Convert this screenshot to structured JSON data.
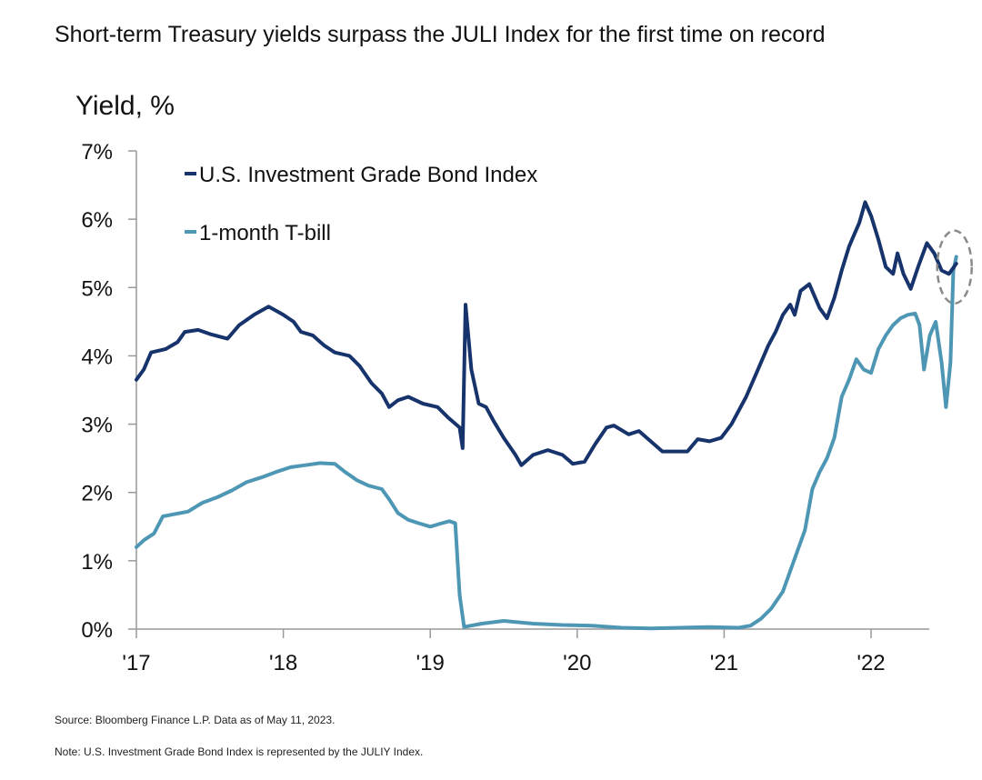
{
  "chart_data": {
    "type": "line",
    "title": "Short-term Treasury yields surpass the JULI Index for the first time on record",
    "ylabel": "Yield, %",
    "xlabel": "",
    "ylim": [
      0,
      7
    ],
    "xlim": [
      2017,
      2022.42
    ],
    "y_ticks": [
      0,
      1,
      2,
      3,
      4,
      5,
      6,
      7
    ],
    "y_tick_labels": [
      "0%",
      "1%",
      "2%",
      "3%",
      "4%",
      "5%",
      "6%",
      "7%"
    ],
    "x_ticks": [
      2017,
      2018,
      2019,
      2020,
      2021,
      2022
    ],
    "x_tick_labels": [
      "'17",
      "'18",
      "'19",
      "'20",
      "'21",
      "'22"
    ],
    "legend": {
      "placement": "top-left",
      "entries": [
        "U.S. Investment Grade Bond Index",
        "1-month T-bill"
      ]
    },
    "series": [
      {
        "name": "U.S. Investment Grade Bond Index",
        "color": "#17336b",
        "points": [
          [
            2017.0,
            3.65
          ],
          [
            2017.05,
            3.8
          ],
          [
            2017.1,
            4.05
          ],
          [
            2017.2,
            4.1
          ],
          [
            2017.28,
            4.2
          ],
          [
            2017.33,
            4.35
          ],
          [
            2017.42,
            4.38
          ],
          [
            2017.5,
            4.32
          ],
          [
            2017.62,
            4.25
          ],
          [
            2017.7,
            4.45
          ],
          [
            2017.8,
            4.6
          ],
          [
            2017.9,
            4.72
          ],
          [
            2018.0,
            4.6
          ],
          [
            2018.07,
            4.5
          ],
          [
            2018.12,
            4.35
          ],
          [
            2018.2,
            4.3
          ],
          [
            2018.28,
            4.15
          ],
          [
            2018.35,
            4.05
          ],
          [
            2018.45,
            4.0
          ],
          [
            2018.52,
            3.85
          ],
          [
            2018.6,
            3.6
          ],
          [
            2018.67,
            3.45
          ],
          [
            2018.72,
            3.25
          ],
          [
            2018.78,
            3.35
          ],
          [
            2018.85,
            3.4
          ],
          [
            2018.95,
            3.3
          ],
          [
            2019.05,
            3.25
          ],
          [
            2019.12,
            3.1
          ],
          [
            2019.2,
            2.95
          ],
          [
            2019.22,
            2.65
          ],
          [
            2019.24,
            4.75
          ],
          [
            2019.28,
            3.8
          ],
          [
            2019.33,
            3.3
          ],
          [
            2019.38,
            3.25
          ],
          [
            2019.43,
            3.05
          ],
          [
            2019.5,
            2.8
          ],
          [
            2019.58,
            2.55
          ],
          [
            2019.62,
            2.4
          ],
          [
            2019.7,
            2.55
          ],
          [
            2019.8,
            2.62
          ],
          [
            2019.9,
            2.55
          ],
          [
            2019.97,
            2.42
          ],
          [
            2020.05,
            2.45
          ],
          [
            2020.12,
            2.7
          ],
          [
            2020.2,
            2.95
          ],
          [
            2020.25,
            2.98
          ],
          [
            2020.35,
            2.85
          ],
          [
            2020.42,
            2.9
          ],
          [
            2020.5,
            2.75
          ],
          [
            2020.58,
            2.6
          ],
          [
            2020.67,
            2.6
          ],
          [
            2020.75,
            2.6
          ],
          [
            2020.82,
            2.78
          ],
          [
            2020.9,
            2.75
          ],
          [
            2020.98,
            2.8
          ],
          [
            2021.05,
            3.0
          ],
          [
            2021.15,
            3.4
          ],
          [
            2021.22,
            3.75
          ],
          [
            2021.3,
            4.15
          ],
          [
            2021.35,
            4.35
          ],
          [
            2021.4,
            4.6
          ],
          [
            2021.45,
            4.75
          ],
          [
            2021.48,
            4.6
          ],
          [
            2021.52,
            4.95
          ],
          [
            2021.58,
            5.05
          ],
          [
            2021.65,
            4.7
          ],
          [
            2021.7,
            4.55
          ],
          [
            2021.75,
            4.85
          ],
          [
            2021.8,
            5.25
          ],
          [
            2021.85,
            5.6
          ],
          [
            2021.92,
            5.95
          ],
          [
            2021.96,
            6.25
          ],
          [
            2022.0,
            6.05
          ],
          [
            2022.05,
            5.7
          ],
          [
            2022.1,
            5.3
          ],
          [
            2022.15,
            5.2
          ],
          [
            2022.18,
            5.5
          ],
          [
            2022.22,
            5.2
          ],
          [
            2022.27,
            4.98
          ],
          [
            2022.32,
            5.3
          ],
          [
            2022.38,
            5.65
          ],
          [
            2022.43,
            5.5
          ],
          [
            2022.48,
            5.25
          ],
          [
            2022.53,
            5.2
          ],
          [
            2022.58,
            5.35
          ]
        ]
      },
      {
        "name": "1-month T-bill",
        "color": "#4e97b4",
        "points": [
          [
            2017.0,
            1.2
          ],
          [
            2017.05,
            1.3
          ],
          [
            2017.12,
            1.4
          ],
          [
            2017.18,
            1.65
          ],
          [
            2017.25,
            1.68
          ],
          [
            2017.35,
            1.72
          ],
          [
            2017.45,
            1.85
          ],
          [
            2017.55,
            1.93
          ],
          [
            2017.65,
            2.03
          ],
          [
            2017.75,
            2.15
          ],
          [
            2017.85,
            2.22
          ],
          [
            2017.95,
            2.3
          ],
          [
            2018.05,
            2.37
          ],
          [
            2018.15,
            2.4
          ],
          [
            2018.25,
            2.43
          ],
          [
            2018.35,
            2.42
          ],
          [
            2018.42,
            2.3
          ],
          [
            2018.5,
            2.18
          ],
          [
            2018.58,
            2.1
          ],
          [
            2018.67,
            2.05
          ],
          [
            2018.72,
            1.9
          ],
          [
            2018.78,
            1.7
          ],
          [
            2018.85,
            1.6
          ],
          [
            2018.92,
            1.55
          ],
          [
            2019.0,
            1.5
          ],
          [
            2019.08,
            1.55
          ],
          [
            2019.13,
            1.58
          ],
          [
            2019.17,
            1.55
          ],
          [
            2019.2,
            0.5
          ],
          [
            2019.23,
            0.03
          ],
          [
            2019.35,
            0.08
          ],
          [
            2019.5,
            0.12
          ],
          [
            2019.7,
            0.08
          ],
          [
            2019.9,
            0.06
          ],
          [
            2020.1,
            0.05
          ],
          [
            2020.3,
            0.02
          ],
          [
            2020.5,
            0.01
          ],
          [
            2020.7,
            0.02
          ],
          [
            2020.9,
            0.03
          ],
          [
            2021.1,
            0.02
          ],
          [
            2021.18,
            0.05
          ],
          [
            2021.25,
            0.15
          ],
          [
            2021.32,
            0.3
          ],
          [
            2021.4,
            0.55
          ],
          [
            2021.45,
            0.85
          ],
          [
            2021.5,
            1.15
          ],
          [
            2021.55,
            1.45
          ],
          [
            2021.6,
            2.05
          ],
          [
            2021.65,
            2.3
          ],
          [
            2021.7,
            2.5
          ],
          [
            2021.75,
            2.8
          ],
          [
            2021.8,
            3.4
          ],
          [
            2021.85,
            3.65
          ],
          [
            2021.9,
            3.95
          ],
          [
            2021.95,
            3.8
          ],
          [
            2022.0,
            3.75
          ],
          [
            2022.05,
            4.1
          ],
          [
            2022.1,
            4.3
          ],
          [
            2022.15,
            4.45
          ],
          [
            2022.2,
            4.55
          ],
          [
            2022.25,
            4.6
          ],
          [
            2022.3,
            4.62
          ],
          [
            2022.33,
            4.45
          ],
          [
            2022.36,
            3.8
          ],
          [
            2022.4,
            4.3
          ],
          [
            2022.44,
            4.5
          ],
          [
            2022.48,
            3.9
          ],
          [
            2022.51,
            3.25
          ],
          [
            2022.54,
            3.9
          ],
          [
            2022.56,
            5.25
          ],
          [
            2022.58,
            5.45
          ]
        ]
      }
    ]
  },
  "notes": {
    "source": "Source: Bloomberg Finance L.P. Data as of May 11, 2023.",
    "note": "Note: U.S. Investment Grade Bond Index is represented by the JULIY Index."
  }
}
